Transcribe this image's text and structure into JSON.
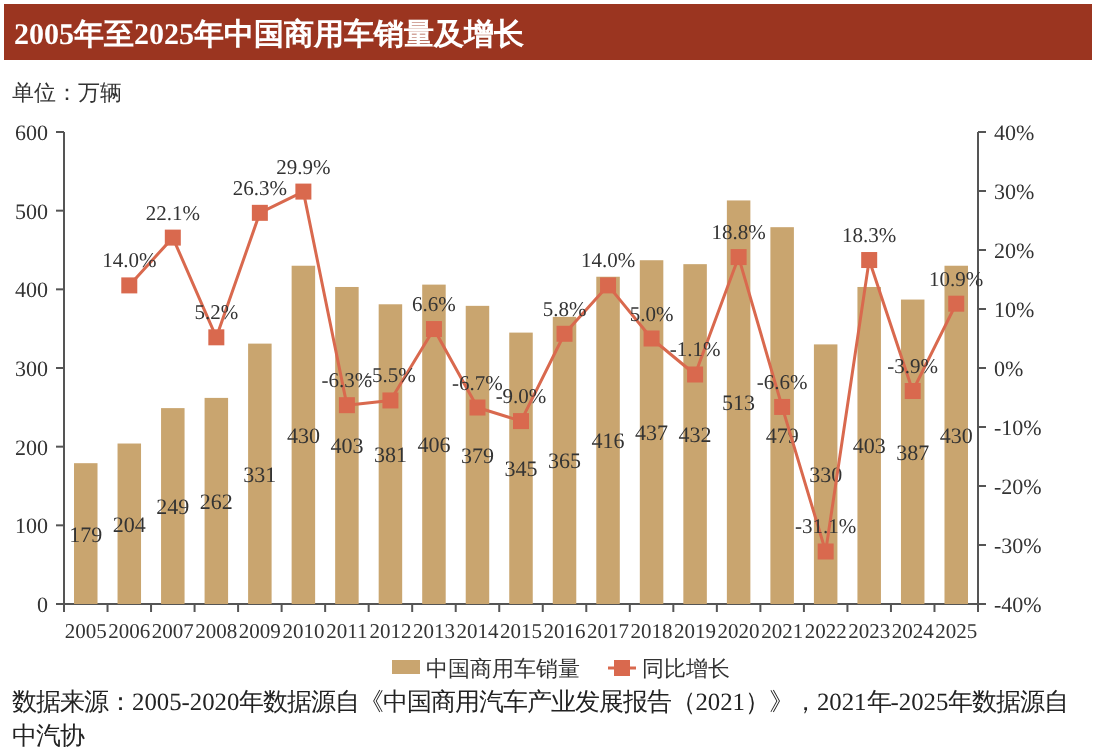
{
  "chart_data": {
    "type": "bar",
    "title": "2005年至2025年中国商用车销量及增长",
    "ylabel": "单位：万辆",
    "categories": [
      "2005",
      "2006",
      "2007",
      "2008",
      "2009",
      "2010",
      "2011",
      "2012",
      "2013",
      "2014",
      "2015",
      "2016",
      "2017",
      "2018",
      "2019",
      "2020",
      "2021",
      "2022",
      "2023",
      "2024",
      "2025"
    ],
    "series": [
      {
        "name": "中国商用车销量",
        "color": "#c9a56f",
        "values": [
          179,
          204,
          249,
          262,
          331,
          430,
          403,
          381,
          406,
          379,
          345,
          365,
          416,
          437,
          432,
          513,
          479,
          330,
          403,
          387,
          430
        ],
        "value_labels": [
          "179",
          "204",
          "249",
          "262",
          "331",
          "430",
          "403",
          "381",
          "406",
          "379",
          "345",
          "365",
          "416",
          "437",
          "432",
          "513",
          "479",
          "330",
          "403",
          "387",
          "430"
        ]
      },
      {
        "name": "同比增长",
        "type": "line",
        "axis": "y2",
        "marker": "square",
        "color": "#d9694e",
        "values": [
          null,
          14.0,
          22.1,
          5.2,
          26.3,
          29.9,
          -6.3,
          -5.5,
          6.6,
          -6.7,
          -9.0,
          5.8,
          14.0,
          5.0,
          -1.1,
          18.8,
          -6.6,
          -31.1,
          18.3,
          -3.9,
          10.9
        ],
        "value_labels": [
          null,
          "14.0%",
          "22.1%",
          "5.2%",
          "26.3%",
          "29.9%",
          "-6.3%",
          "-5.5%",
          "6.6%",
          "-6.7%",
          "-9.0%",
          "5.8%",
          "14.0%",
          "5.0%",
          "-1.1%",
          "18.8%",
          "-6.6%",
          "-31.1%",
          "18.3%",
          "-3.9%",
          "10.9%"
        ]
      }
    ],
    "ylim": [
      0,
      600
    ],
    "yticks": [
      0,
      100,
      200,
      300,
      400,
      500,
      600
    ],
    "y2lim": [
      -40,
      40
    ],
    "y2ticks": [
      {
        "value": -40,
        "label": "-40%"
      },
      {
        "value": -30,
        "label": "-30%"
      },
      {
        "value": -20,
        "label": "-20%"
      },
      {
        "value": -10,
        "label": "-10%"
      },
      {
        "value": 0,
        "label": "0%"
      },
      {
        "value": 10,
        "label": "10%"
      },
      {
        "value": 20,
        "label": "20%"
      },
      {
        "value": 30,
        "label": "30%"
      },
      {
        "value": 40,
        "label": "40%"
      }
    ],
    "legend": "bottom",
    "annotations": [
      "数据来源：2005-2020年数据源自《中国商用汽车产业发展报告（2021）》，2021年-2025年数据源自中汽协"
    ]
  }
}
